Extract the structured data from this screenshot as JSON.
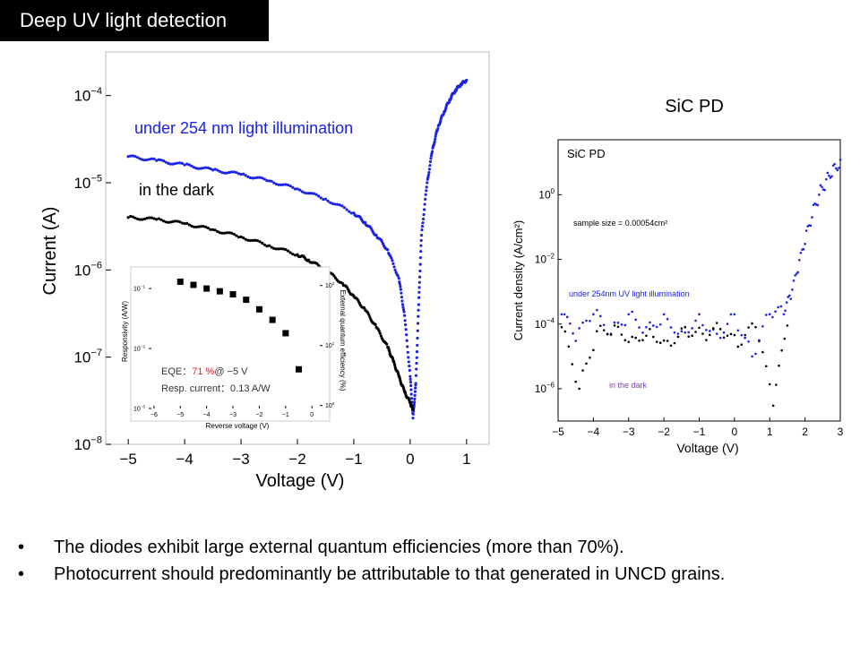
{
  "slide": {
    "title": "Deep UV light detection",
    "right_heading": "SiC PD",
    "bullets": [
      "The diodes exhibit large external quantum efficiencies (more than 70%).",
      "Photocurrent should predominantly be attributable to that generated in UNCD grains."
    ],
    "bullet_symbol": "•"
  },
  "colors": {
    "blue": "#1a23e6",
    "black": "#000000",
    "red": "#e02020",
    "purple": "#7a3fb0"
  },
  "chart_data": [
    {
      "type": "scatter",
      "xlabel": "Voltage (V)",
      "ylabel": "Current (A)",
      "xlim": [
        -5.4,
        1.4
      ],
      "ylim_log10": [
        -8,
        -3.5
      ],
      "log_y": true,
      "x_ticks": [
        "−5",
        "−4",
        "−3",
        "−2",
        "−1",
        "0",
        "1"
      ],
      "x_tick_values": [
        -5,
        -4,
        -3,
        -2,
        -1,
        0,
        1
      ],
      "y_ticks": [
        {
          "base": "10",
          "exp": "−8",
          "v": -8
        },
        {
          "base": "10",
          "exp": "−7",
          "v": -7
        },
        {
          "base": "10",
          "exp": "−6",
          "v": -6
        },
        {
          "base": "10",
          "exp": "−5",
          "v": -5
        },
        {
          "base": "10",
          "exp": "−4",
          "v": -4
        }
      ],
      "annotations": [
        "under 254 nm light illumination",
        "in the dark"
      ],
      "series": [
        {
          "color": "#1a23e6",
          "x": [
            -5,
            -4.5,
            -4,
            -3.5,
            -3,
            -2.5,
            -2,
            -1.5,
            -1,
            -0.8,
            -0.6,
            -0.4,
            -0.2,
            -0.1,
            0,
            0.05,
            0.1,
            0.15,
            0.2,
            0.3,
            0.4,
            0.5,
            0.6,
            0.7,
            0.8,
            0.9,
            1.0
          ],
          "y": [
            2e-05,
            1.8e-05,
            1.6e-05,
            1.4e-05,
            1.25e-05,
            1.05e-05,
            8.5e-06,
            6.5e-06,
            4.5e-06,
            3.5e-06,
            2.5e-06,
            1.7e-06,
            8e-07,
            3e-07,
            6e-08,
            2e-08,
            5e-08,
            4e-07,
            2.5e-06,
            1e-05,
            2.5e-05,
            4.5e-05,
            6.5e-05,
            9e-05,
            0.000115,
            0.000135,
            0.00015
          ]
        },
        {
          "color": "#000000",
          "x": [
            -5,
            -4.5,
            -4,
            -3.5,
            -3,
            -2.5,
            -2,
            -1.8,
            -1.5,
            -1.2,
            -1,
            -0.8,
            -0.6,
            -0.4,
            -0.3,
            -0.2,
            -0.1,
            0,
            0.05
          ],
          "y": [
            4e-06,
            3.8e-06,
            3.4e-06,
            2.9e-06,
            2.4e-06,
            1.9e-06,
            1.5e-06,
            1.3e-06,
            1e-06,
            7e-07,
            5e-07,
            3.5e-07,
            2.2e-07,
            1.3e-07,
            9e-08,
            6e-08,
            4e-08,
            3e-08,
            2.5e-08
          ]
        }
      ]
    },
    {
      "type": "scatter",
      "xlabel": "Reverse voltage (V)",
      "ylabel": "Responsivity (A/W)",
      "ylabel_right": "External quantum efficiency (%)",
      "xlim": [
        -6.2,
        0.4
      ],
      "ylim_log10": [
        -3,
        -0.7
      ],
      "log_y": true,
      "x_ticks": [
        "−6",
        "−5",
        "−4",
        "−3",
        "−2",
        "−1",
        "0"
      ],
      "x_tick_values": [
        -6,
        -5,
        -4,
        -3,
        -2,
        -1,
        0
      ],
      "y_ticks": [
        {
          "base": "10",
          "exp": "−3",
          "v": -3
        },
        {
          "base": "10",
          "exp": "−2",
          "v": -2
        },
        {
          "base": "10",
          "exp": "−1",
          "v": -1
        }
      ],
      "y_ticks_right": [
        {
          "base": "10",
          "exp": "0",
          "v": -2.95
        },
        {
          "base": "10",
          "exp": "1",
          "v": -1.95
        },
        {
          "base": "10",
          "exp": "2",
          "v": -0.95
        }
      ],
      "annotations": {
        "eqe_label": "EQE：",
        "eqe_value": "71 %",
        "eqe_suffix": "@ −5 V",
        "resp_label": "Resp. current：0.13 A/W"
      },
      "series": [
        {
          "color": "#000000",
          "x": [
            -5,
            -4.5,
            -4,
            -3.5,
            -3,
            -2.5,
            -2,
            -1.5,
            -1,
            -0.5
          ],
          "y": [
            0.13,
            0.115,
            0.1,
            0.09,
            0.08,
            0.065,
            0.045,
            0.03,
            0.018,
            0.0045
          ]
        }
      ]
    },
    {
      "type": "scatter",
      "title": "SiC PD",
      "xlabel": "Voltage (V)",
      "ylabel": "Current density (A/cm²)",
      "xlim": [
        -5,
        3
      ],
      "ylim_log10": [
        -7,
        1.7
      ],
      "log_y": true,
      "x_ticks": [
        "−5",
        "−4",
        "−3",
        "−2",
        "−1",
        "0",
        "1",
        "2",
        "3"
      ],
      "x_tick_values": [
        -5,
        -4,
        -3,
        -2,
        -1,
        0,
        1,
        2,
        3
      ],
      "y_ticks": [
        {
          "base": "10",
          "exp": "−6",
          "v": -6
        },
        {
          "base": "10",
          "exp": "−4",
          "v": -4
        },
        {
          "base": "10",
          "exp": "−2",
          "v": -2
        },
        {
          "base": "10",
          "exp": "0",
          "v": 0
        }
      ],
      "annotations": [
        "sample size = 0.00054cm²",
        "under 254nm UV light illumination",
        "in the dark"
      ],
      "series": [
        {
          "color": "#1a23e6",
          "x": [
            -4.9,
            -4.5,
            -4,
            -3.5,
            -3,
            -2.5,
            -2,
            -1.5,
            -1,
            -0.5,
            0,
            0.5,
            1.0,
            1.4,
            1.6,
            1.8,
            2.0,
            2.2,
            2.4,
            2.6,
            2.8,
            3.0
          ],
          "y": [
            0.0002,
            3e-05,
            0.0002,
            5e-05,
            0.0002,
            8e-05,
            0.0002,
            6e-05,
            0.0002,
            5e-05,
            0.0002,
            1e-05,
            0.0002,
            0.0002,
            0.0006,
            0.004,
            0.03,
            0.2,
            1.0,
            3.0,
            8.0,
            12.0
          ]
        },
        {
          "color": "#000000",
          "x": [
            -4.9,
            -4.4,
            -3.9,
            -3.4,
            -2.9,
            -2.4,
            -1.9,
            -1.4,
            -0.9,
            -0.4,
            0.1,
            0.6,
            1.1,
            1.5
          ],
          "y": [
            8e-05,
            1e-06,
            6e-05,
            9e-05,
            4e-05,
            7e-05,
            3e-05,
            8e-05,
            5e-05,
            7e-05,
            2e-05,
            8e-05,
            3e-07,
            9e-05
          ]
        }
      ]
    }
  ]
}
